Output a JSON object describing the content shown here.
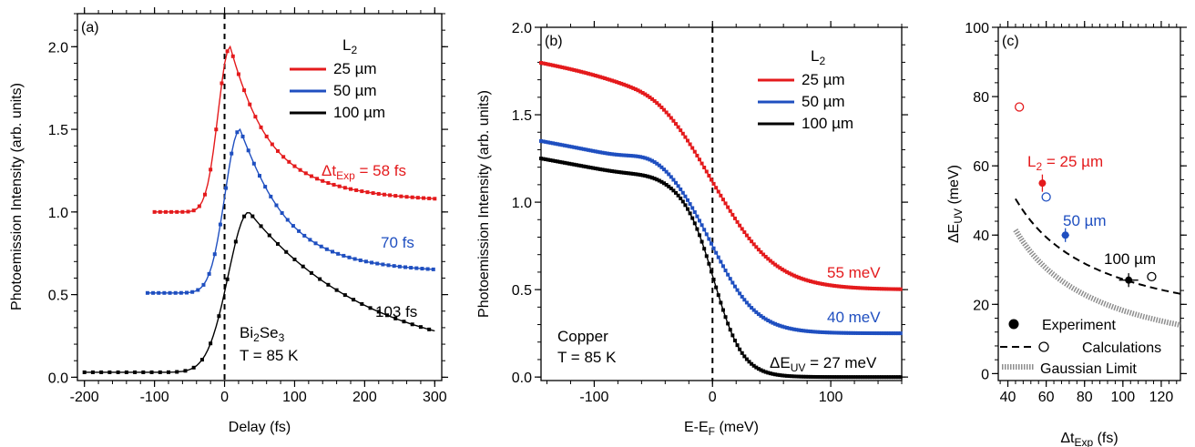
{
  "chart_data": [
    {
      "type": "line",
      "panel_label": "(a)",
      "xlabel": "Delay (fs)",
      "ylabel": "Photoemission Intensity (arb. units)",
      "xlim": [
        -210,
        310
      ],
      "ylim": [
        -0.02,
        2.2
      ],
      "xticks": [
        -200,
        -100,
        0,
        100,
        200,
        300
      ],
      "xtick_labels": [
        "-200",
        "-100",
        "0",
        "100",
        "200",
        "300"
      ],
      "yticks": [
        0.0,
        0.5,
        1.0,
        1.5,
        2.0
      ],
      "ytick_labels": [
        "0.0",
        "0.5",
        "1.0",
        "1.5",
        "2.0"
      ],
      "vline_x": 0,
      "legend": {
        "title": "L",
        "title_sub": "2",
        "placement": "top-right",
        "entries": [
          "25 µm",
          "50 µm",
          "100 µm"
        ],
        "colors": [
          "#e41a1c",
          "#1f4fc0",
          "#000000"
        ]
      },
      "series": [
        {
          "name": "25 µm",
          "color": "#e41a1c",
          "x_start": -100,
          "x_end": 300,
          "baseline": 1.0,
          "peak_x": 8,
          "peak_y": 2.0,
          "rise_width": 24,
          "tail_y": 1.06
        },
        {
          "name": "50 µm",
          "color": "#1f4fc0",
          "x_start": -110,
          "x_end": 300,
          "baseline": 0.51,
          "peak_x": 22,
          "peak_y": 1.5,
          "rise_width": 30,
          "tail_y": 0.63
        },
        {
          "name": "100 µm",
          "color": "#000000",
          "x_start": -200,
          "x_end": 300,
          "baseline": 0.03,
          "peak_x": 35,
          "peak_y": 1.0,
          "rise_width": 42,
          "tail_y": 0.28
        }
      ],
      "annotations": [
        {
          "text": "Δt",
          "sub": "Exp",
          "suffix": " = 58 fs",
          "color": "#e41a1c"
        },
        {
          "text": "70 fs",
          "color": "#1f4fc0"
        },
        {
          "text": "103 fs",
          "color": "#000000"
        },
        {
          "text": "Bi",
          "sub": "2",
          "mid": "Se",
          "sub2": "3"
        },
        {
          "text": "T = 85 K"
        }
      ]
    },
    {
      "type": "line",
      "panel_label": "(b)",
      "xlabel": "E-E",
      "xlabel_sub": "F",
      "xlabel_suffix": " (meV)",
      "ylabel": "Photoemission Intensity (arb. units)",
      "xlim": [
        -145,
        160
      ],
      "ylim": [
        -0.02,
        2.0
      ],
      "xticks": [
        -100,
        0,
        100
      ],
      "xtick_labels": [
        "-100",
        "0",
        "100"
      ],
      "yticks": [
        0.0,
        0.5,
        1.0,
        1.5,
        2.0
      ],
      "ytick_labels": [
        "0.0",
        "0.5",
        "1.0",
        "1.5",
        "2.0"
      ],
      "vline_x": 0,
      "legend": {
        "title": "L",
        "title_sub": "2",
        "placement": "top-right",
        "entries": [
          "25 µm",
          "50 µm",
          "100 µm"
        ],
        "colors": [
          "#e41a1c",
          "#1f4fc0",
          "#000000"
        ]
      },
      "series": [
        {
          "name": "25 µm",
          "color": "#e41a1c",
          "left": 1.8,
          "right": 0.5,
          "edge": 5,
          "width": 25
        },
        {
          "name": "50 µm",
          "color": "#1f4fc0",
          "left": 1.35,
          "right": 0.25,
          "edge": 3,
          "width": 18
        },
        {
          "name": "100 µm",
          "color": "#000000",
          "left": 1.25,
          "right": 0.0,
          "edge": 2,
          "width": 12
        }
      ],
      "annotations": [
        {
          "text": "55 meV",
          "color": "#e41a1c"
        },
        {
          "text": "40 meV",
          "color": "#1f4fc0"
        },
        {
          "text": "ΔE",
          "sub": "UV",
          "suffix": " = 27 meV",
          "color": "#000000"
        },
        {
          "text": "Copper"
        },
        {
          "text": "T = 85 K"
        }
      ]
    },
    {
      "type": "scatter",
      "panel_label": "(c)",
      "xlabel": "Δt",
      "xlabel_sub": "Exp",
      "xlabel_suffix": " (fs)",
      "ylabel": "ΔE",
      "ylabel_sub": "UV",
      "ylabel_suffix": " (meV)",
      "xlim": [
        35,
        130
      ],
      "ylim": [
        -2,
        100
      ],
      "xticks": [
        40,
        60,
        80,
        100,
        120
      ],
      "xtick_labels": [
        "40",
        "60",
        "80",
        "100",
        "120"
      ],
      "yticks": [
        0,
        20,
        40,
        60,
        80,
        100
      ],
      "ytick_labels": [
        "0",
        "20",
        "40",
        "60",
        "80",
        "100"
      ],
      "experiment": [
        {
          "x": 58,
          "y": 55,
          "xerr": 1,
          "yerr": 2.5,
          "color": "#e41a1c"
        },
        {
          "x": 70,
          "y": 40,
          "xerr": 2,
          "yerr": 2,
          "color": "#1f4fc0"
        },
        {
          "x": 103,
          "y": 27,
          "xerr": 5,
          "yerr": 2,
          "color": "#000000"
        }
      ],
      "calculations": [
        {
          "x": 46,
          "y": 77,
          "color": "#e41a1c"
        },
        {
          "x": 60,
          "y": 51,
          "color": "#1f4fc0"
        },
        {
          "x": 115,
          "y": 28,
          "color": "#000000"
        }
      ],
      "gaussian_limit_constant": 1825,
      "calc_fit_offset": 9,
      "legend": {
        "placement": "bottom",
        "entries": [
          "Experiment",
          "Calculations",
          "Gaussian Limit"
        ]
      },
      "annotations": [
        {
          "text": "L",
          "sub": "2",
          "suffix": " = 25 µm",
          "color": "#e41a1c"
        },
        {
          "text": "50 µm",
          "color": "#1f4fc0"
        },
        {
          "text": "100 µm",
          "color": "#000000"
        }
      ]
    }
  ]
}
